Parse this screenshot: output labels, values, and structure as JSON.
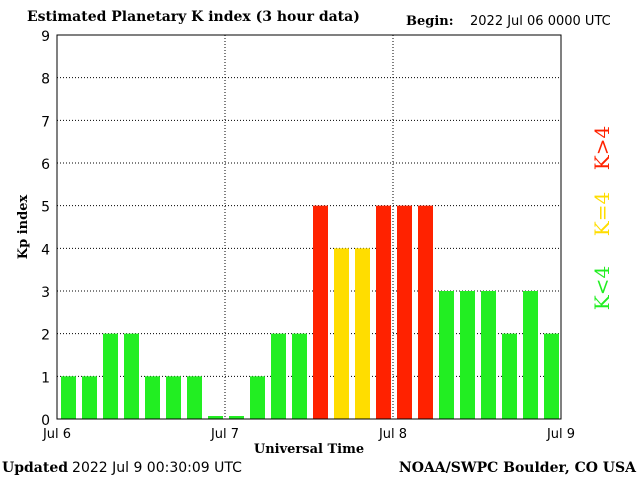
{
  "header": {
    "title": "Estimated Planetary K index (3 hour data)",
    "begin_label": "Begin:",
    "begin_value": "2022 Jul 06 0000 UTC"
  },
  "footer": {
    "updated_label": "Updated",
    "updated_value": "2022 Jul  9 00:30:09 UTC",
    "credit": "NOAA/SWPC Boulder, CO USA"
  },
  "colors": {
    "low": "#22ee22",
    "storm_threshold": "#ffdd00",
    "high": "#ff2200",
    "grid": "#000000"
  },
  "chart_data": {
    "type": "bar",
    "title": "Estimated Planetary K index (3 hour data)",
    "xlabel": "Universal Time",
    "ylabel": "Kp index",
    "ylim": [
      0,
      9
    ],
    "yticks": [
      "0",
      "1",
      "2",
      "3",
      "4",
      "5",
      "6",
      "7",
      "8",
      "9"
    ],
    "xticks": [
      "Jul 6",
      "Jul 7",
      "Jul 8",
      "Jul 9"
    ],
    "bars_per_day": 8,
    "grid": true,
    "values": [
      1,
      1,
      2,
      2,
      1,
      1,
      1,
      0.07,
      0.07,
      1,
      2,
      2,
      5,
      4,
      4,
      5,
      5,
      5,
      3,
      3,
      3,
      2,
      3,
      2
    ],
    "legend": [
      {
        "label": "K<4",
        "color": "#22ee22"
      },
      {
        "label": "K=4",
        "color": "#ffdd00"
      },
      {
        "label": "K>4",
        "color": "#ff2200"
      }
    ],
    "legend_position": "right"
  }
}
